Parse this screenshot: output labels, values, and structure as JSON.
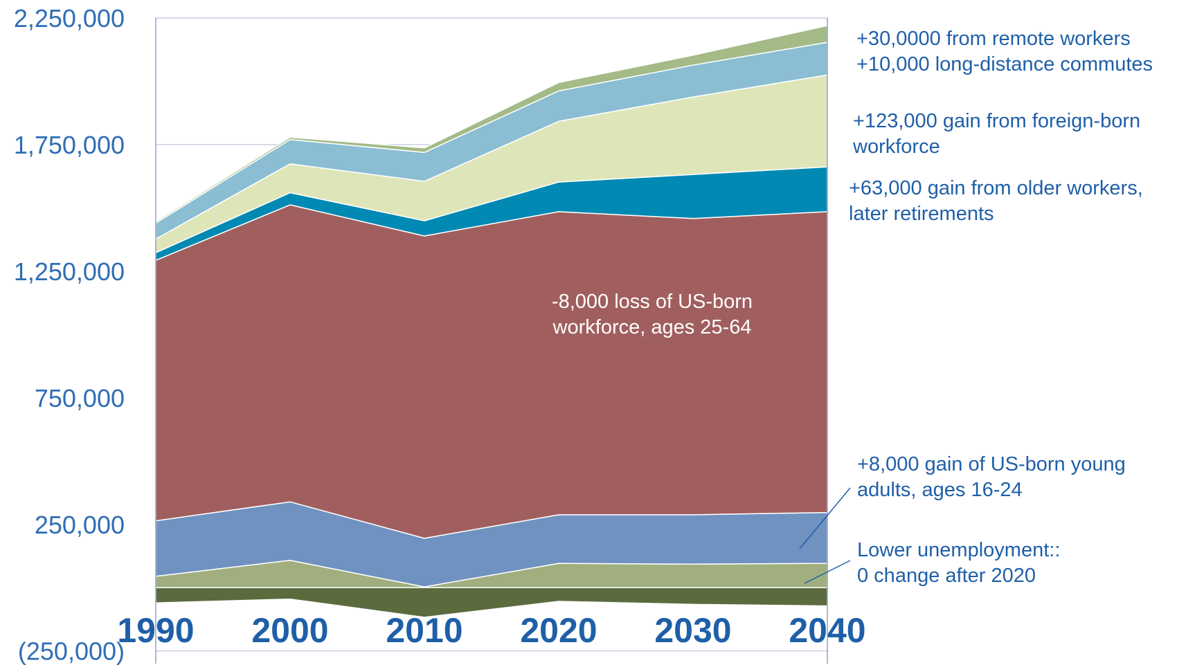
{
  "chart_data": {
    "type": "stacked-area",
    "x": [
      1990,
      2000,
      2010,
      2020,
      2030,
      2040
    ],
    "xlim": [
      1990,
      2040
    ],
    "xticks": [
      1990,
      2000,
      2010,
      2020,
      2030,
      2040
    ],
    "ylim": [
      -300000,
      2250000
    ],
    "yticks": [
      {
        "value": -250000,
        "label": "(250,000)"
      },
      {
        "value": 250000,
        "label": "250,000"
      },
      {
        "value": 750000,
        "label": "750,000"
      },
      {
        "value": 1250000,
        "label": "1,250,000"
      },
      {
        "value": 1750000,
        "label": "1,750,000"
      },
      {
        "value": 2250000,
        "label": "2,250,000"
      }
    ],
    "grid": true,
    "series": [
      {
        "color": "#5b6b3e",
        "values": [
          -60000,
          -45000,
          -117000,
          -54000,
          -66000,
          -72000
        ]
      },
      {
        "color": "#a1af7f",
        "values": [
          45000,
          108000,
          3000,
          96000,
          93000,
          96000
        ]
      },
      {
        "color": "#7092c0",
        "values": [
          219000,
          231000,
          192000,
          192000,
          195000,
          201000
        ]
      },
      {
        "color": "#a05f5e",
        "values": [
          1029000,
          1173000,
          1194000,
          1197000,
          1170000,
          1188000
        ]
      },
      {
        "color": "#0089b2",
        "values": [
          30000,
          48000,
          60000,
          117000,
          174000,
          177000
        ]
      },
      {
        "color": "#dee6b9",
        "values": [
          54000,
          114000,
          156000,
          240000,
          306000,
          363000
        ]
      },
      {
        "color": "#8bbdd3",
        "values": [
          63000,
          96000,
          114000,
          120000,
          126000,
          129000
        ]
      },
      {
        "color": "#a4ba87",
        "values": [
          6000,
          9000,
          18000,
          33000,
          39000,
          66000
        ]
      }
    ],
    "annotations": [
      {
        "text": [
          "+30,0000 from remote workers"
        ]
      },
      {
        "text": [
          "+10,000 long-distance commutes"
        ]
      },
      {
        "text": [
          "+123,000 gain from foreign-born",
          "workforce"
        ]
      },
      {
        "text": [
          "+63,000 gain from older workers,",
          "later retirements"
        ]
      },
      {
        "text": [
          "-8,000 loss of US-born",
          "workforce, ages 25-64"
        ]
      },
      {
        "text": [
          "+8,000 gain of US-born young",
          "adults, ages 16-24"
        ]
      },
      {
        "text": [
          "Lower unemployment::",
          "0 change after 2020"
        ]
      }
    ]
  }
}
